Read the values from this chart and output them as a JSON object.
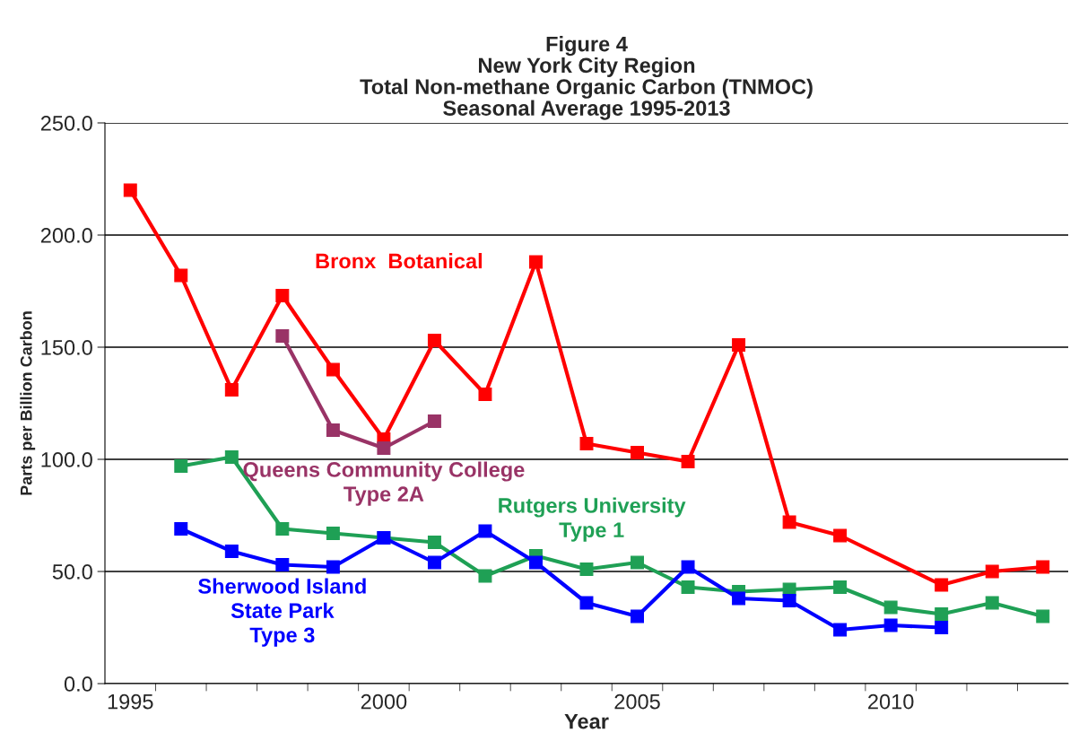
{
  "chart_data": {
    "type": "line",
    "title": "Figure 4\nNew York City Region\nTotal Non-methane Organic Carbon (TNMOC)\nSeasonal Average 1995-2013",
    "xlabel": "Year",
    "ylabel": "Parts per Billion Carbon",
    "categories": [
      "1995",
      null,
      null,
      null,
      null,
      "2000",
      null,
      null,
      null,
      null,
      "2005",
      null,
      null,
      null,
      null,
      "2010",
      null,
      null,
      null
    ],
    "series": [
      {
        "name": "Bronx  Botanical",
        "color": "#ff0000",
        "values": [
          220,
          182,
          131,
          173,
          140,
          109,
          153,
          129,
          188,
          107,
          103,
          99,
          151,
          72,
          66,
          null,
          44,
          50,
          52
        ]
      },
      {
        "name": "Queens Community College\nType 2A",
        "color": "#993366",
        "values": [
          null,
          null,
          null,
          155,
          113,
          105,
          117,
          null,
          null,
          null,
          null,
          null,
          null,
          null,
          null,
          null,
          null,
          null,
          null
        ]
      },
      {
        "name": "Rutgers University\nType 1",
        "color": "#1fa055",
        "values": [
          null,
          97,
          101,
          69,
          67,
          65,
          63,
          48,
          57,
          51,
          54,
          43,
          41,
          42,
          43,
          34,
          31,
          36,
          30
        ]
      },
      {
        "name": "Sherwood Island\nState Park\nType 3",
        "color": "#0000ff",
        "values": [
          null,
          69,
          59,
          53,
          52,
          65,
          54,
          68,
          54,
          36,
          30,
          52,
          38,
          37,
          24,
          26,
          25,
          null,
          null
        ]
      }
    ],
    "ylim": [
      0,
      250
    ],
    "yticks": [
      {
        "value": 0,
        "label": "0.0"
      },
      {
        "value": 50,
        "label": "50.0"
      },
      {
        "value": 100,
        "label": "100.0"
      },
      {
        "value": 150,
        "label": "150.0"
      },
      {
        "value": 200,
        "label": "200.0"
      },
      {
        "value": 250,
        "label": "250.0"
      }
    ],
    "grid": "y",
    "legend": false,
    "marker": "square",
    "line_style": "solid"
  }
}
